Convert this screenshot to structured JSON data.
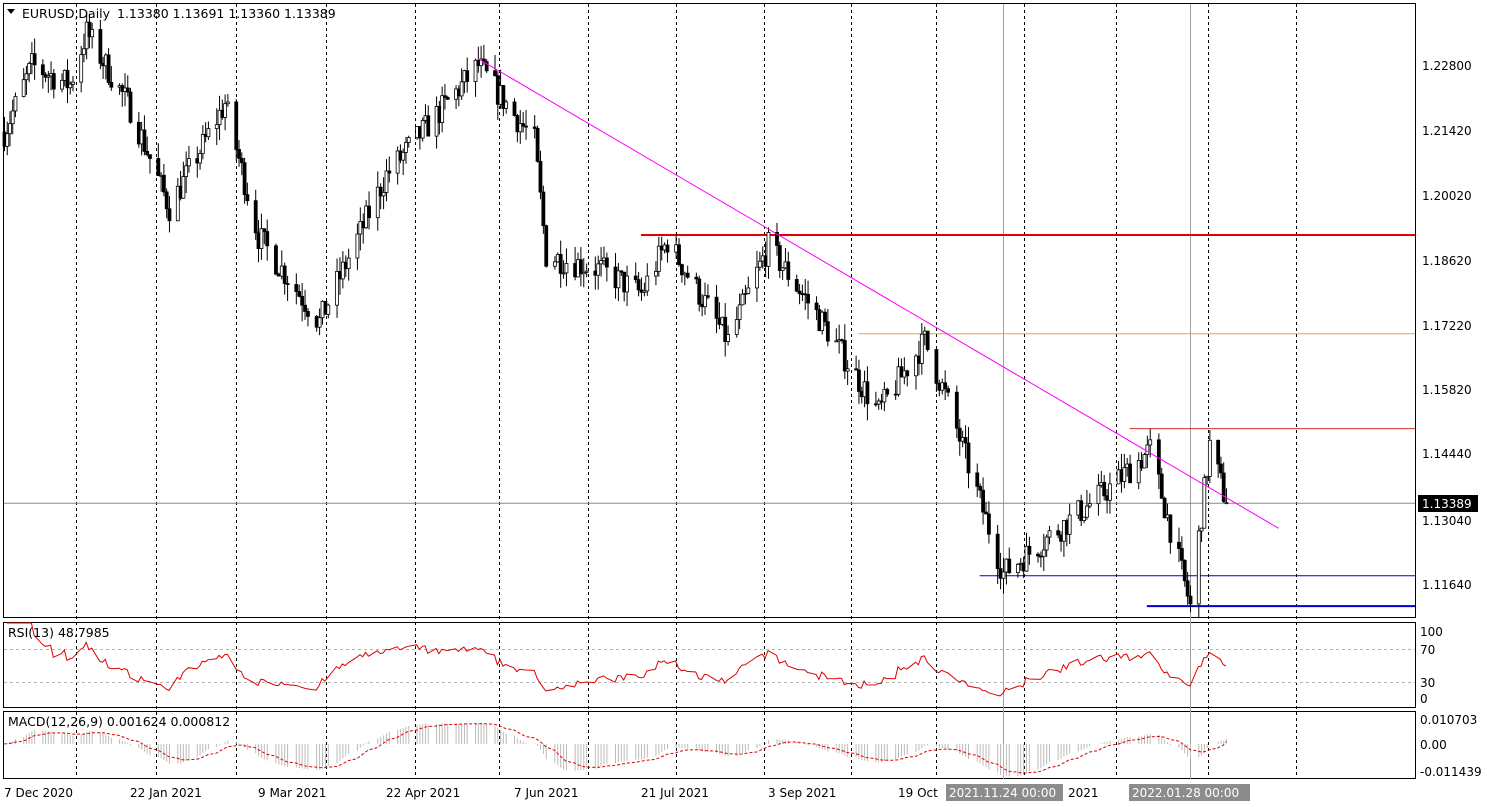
{
  "header": {
    "symbol_timeframe": "EURUSD,Daily",
    "ohlc": "1.13380 1.13691 1.13360 1.13389"
  },
  "price_axis": {
    "ticks": [
      "1.22800",
      "1.21420",
      "1.20020",
      "1.18620",
      "1.17220",
      "1.15820",
      "1.14440",
      "1.13040",
      "1.11640"
    ],
    "current_price_label": "1.13389"
  },
  "time_axis": {
    "labels": [
      "7 Dec 2020",
      "22 Jan 2021",
      "9 Mar 2021",
      "22 Apr 2021",
      "7 Jun 2021",
      "21 Jul 2021",
      "3 Sep 2021",
      "19 Oct",
      "2021.11.24 00:00",
      "2021",
      "2022.01.28 00:00"
    ]
  },
  "rsi_panel": {
    "label": "RSI(13) 48.7985",
    "ticks": [
      "100",
      "70",
      "30",
      "0"
    ]
  },
  "macd_panel": {
    "label": "MACD(12,26,9) 0.001624 0.000812",
    "ticks": [
      "0.010703",
      "0.00",
      "-0.011439"
    ]
  },
  "colors": {
    "background": "#ffffff",
    "grid": "#000000",
    "bull_candle": "#ffffff",
    "bear_candle": "#000000",
    "trendline": "#ff00ff",
    "resistance_high": "#e00000",
    "resistance_mid": "#e8a040",
    "resistance_recent": "#cc3333",
    "support": "#0000cc",
    "rsi_line": "#dd0000",
    "macd_signal": "#dd0000",
    "macd_hist": "#bbbbbb"
  },
  "chart_data": {
    "type": "candlestick",
    "symbol": "EURUSD",
    "timeframe": "Daily",
    "current_price": 1.13389,
    "ylim": [
      1.1098,
      1.239
    ],
    "close_path": [
      [
        "2020-12-07",
        1.212
      ],
      [
        "2020-12-17",
        1.226
      ],
      [
        "2020-12-31",
        1.222
      ],
      [
        "2021-01-06",
        1.233
      ],
      [
        "2021-01-22",
        1.217
      ],
      [
        "2021-02-05",
        1.196
      ],
      [
        "2021-02-25",
        1.218
      ],
      [
        "2021-03-09",
        1.19
      ],
      [
        "2021-03-30",
        1.172
      ],
      [
        "2021-04-22",
        1.203
      ],
      [
        "2021-05-25",
        1.226
      ],
      [
        "2021-06-14",
        1.21
      ],
      [
        "2021-06-18",
        1.186
      ],
      [
        "2021-07-07",
        1.183
      ],
      [
        "2021-07-21",
        1.178
      ],
      [
        "2021-07-30",
        1.189
      ],
      [
        "2021-08-20",
        1.168
      ],
      [
        "2021-09-03",
        1.188
      ],
      [
        "2021-09-22",
        1.172
      ],
      [
        "2021-10-12",
        1.153
      ],
      [
        "2021-10-28",
        1.168
      ],
      [
        "2021-11-05",
        1.155
      ],
      [
        "2021-11-24",
        1.119
      ],
      [
        "2021-12-31",
        1.137
      ],
      [
        "2022-01-14",
        1.145
      ],
      [
        "2022-01-28",
        1.112
      ],
      [
        "2022-02-04",
        1.146
      ],
      [
        "2022-02-10",
        1.1339
      ]
    ],
    "horizontal_levels": [
      {
        "price": 1.1903,
        "from": "2021-07-21",
        "color": "#e00000"
      },
      {
        "price": 1.1695,
        "from": "2021-10-05",
        "color": "#e8a040"
      },
      {
        "price": 1.1495,
        "from": "2022-01-07",
        "color": "#cc3333"
      },
      {
        "price": 1.1185,
        "from": "2021-11-16",
        "color": "#0000cc"
      },
      {
        "price": 1.1121,
        "from": "2022-01-13",
        "color": "#0000cc"
      }
    ],
    "trendline": {
      "from": [
        "2021-05-25",
        1.2275
      ],
      "to": [
        "2022-03-01",
        1.1285
      ]
    },
    "indicators": {
      "rsi": {
        "period": 13,
        "value": 48.7985,
        "levels": [
          70,
          30
        ],
        "ylim": [
          0,
          100
        ]
      },
      "macd": {
        "fast": 12,
        "slow": 26,
        "signal": 9,
        "main": 0.001624,
        "signal_value": 0.000812,
        "ylim": [
          -0.011439,
          0.010703
        ]
      }
    }
  }
}
